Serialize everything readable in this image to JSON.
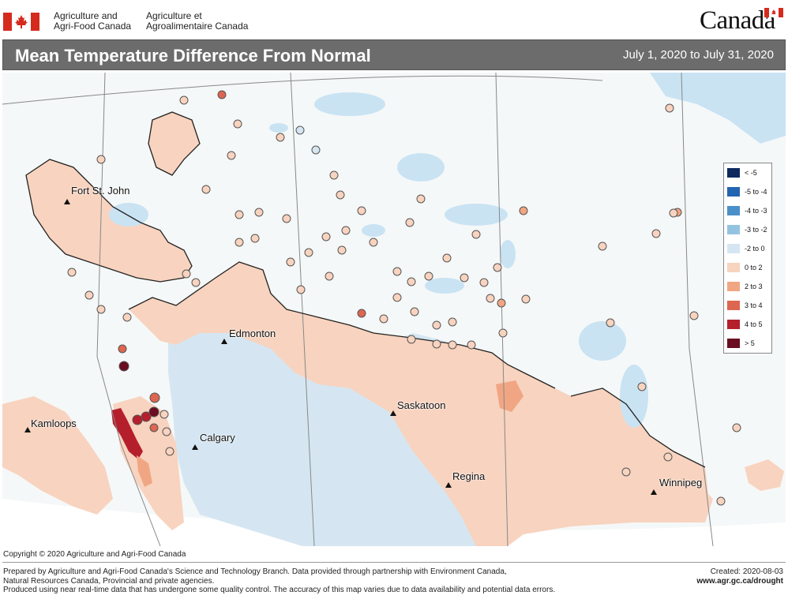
{
  "header": {
    "org_en_line1": "Agriculture and",
    "org_en_line2": "Agri-Food Canada",
    "org_fr_line1": "Agriculture et",
    "org_fr_line2": "Agroalimentaire Canada",
    "wordmark": "Canada"
  },
  "title": "Mean Temperature Difference From Normal",
  "date_range": "July 1, 2020 to July 31, 2020",
  "legend": [
    {
      "label": "< -5",
      "color": "#0d2a5e"
    },
    {
      "label": "-5 to -4",
      "color": "#2365b0"
    },
    {
      "label": "-4 to -3",
      "color": "#4a90c8"
    },
    {
      "label": "-3 to -2",
      "color": "#93c3e0"
    },
    {
      "label": "-2 to 0",
      "color": "#d5e6f2"
    },
    {
      "label": "0 to 2",
      "color": "#f8d3bf"
    },
    {
      "label": "2 to 3",
      "color": "#f1a683"
    },
    {
      "label": "3 to 4",
      "color": "#dd6650"
    },
    {
      "label": "4 to 5",
      "color": "#b51f2c"
    },
    {
      "label": "> 5",
      "color": "#6b0d20"
    }
  ],
  "cities": {
    "fort_st_john": "Fort St. John",
    "edmonton": "Edmonton",
    "kamloops": "Kamloops",
    "calgary": "Calgary",
    "saskatoon": "Saskatoon",
    "regina": "Regina",
    "winnipeg": "Winnipeg"
  },
  "copyright": "Copyright © 2020 Agriculture and Agri-Food Canada",
  "footer": {
    "line1": "Prepared by Agriculture and Agri-Food Canada's Science and Technology Branch. Data provided through partnership with Environment Canada,",
    "line2": "Natural Resources Canada, Provincial and private agencies.",
    "line3": "Produced using near real-time data that has undergone some quality control. The accuracy of this map varies due to data availability and potential data errors.",
    "created": "Created: 2020-08-03",
    "url": "www.agr.gc.ca/drought"
  },
  "colors": {
    "land": "#f5f8f8",
    "water": "#c9e3f3",
    "warm_area": "#f8d3bf",
    "cool_area": "#d5e6f2",
    "hot_area": "#b51f2c",
    "title_bar": "#6c6c6c"
  }
}
